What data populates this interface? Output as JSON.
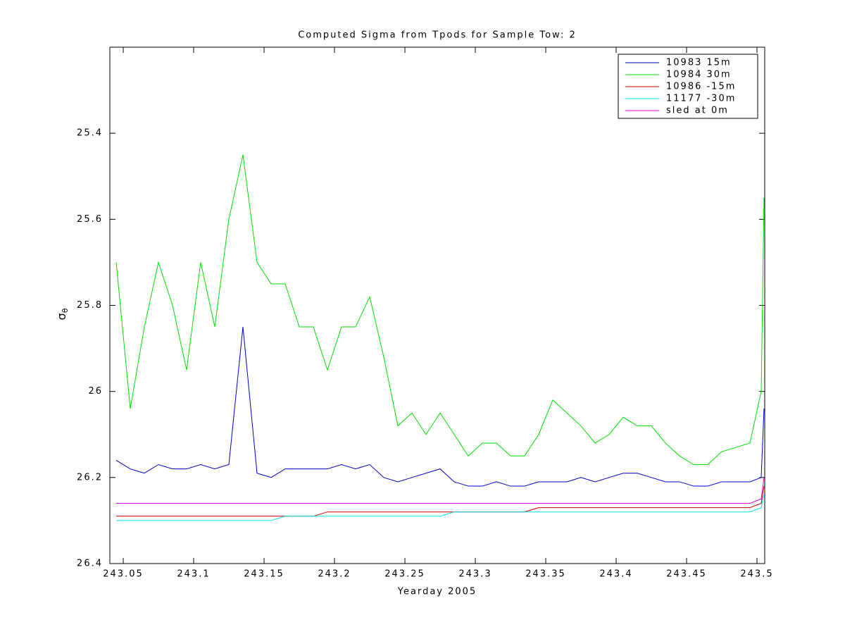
{
  "chart_data": {
    "type": "line",
    "title": "Computed Sigma from Tpods for Sample Tow: 2",
    "xlabel": "Yearday 2005",
    "ylabel": "σθ",
    "xlim": [
      243.0405,
      243.5055
    ],
    "ylim": [
      25.2,
      26.4
    ],
    "y_reversed": true,
    "xticks": [
      243.05,
      243.1,
      243.15,
      243.2,
      243.25,
      243.3,
      243.35,
      243.4,
      243.45,
      243.5
    ],
    "yticks": [
      25.4,
      25.6,
      25.8,
      26,
      26.2,
      26.4
    ],
    "legend": "upper-right",
    "x": [
      243.045,
      243.055,
      243.065,
      243.075,
      243.085,
      243.095,
      243.105,
      243.115,
      243.125,
      243.135,
      243.145,
      243.155,
      243.165,
      243.175,
      243.185,
      243.195,
      243.205,
      243.215,
      243.225,
      243.235,
      243.245,
      243.255,
      243.265,
      243.275,
      243.285,
      243.295,
      243.305,
      243.315,
      243.325,
      243.335,
      243.345,
      243.355,
      243.365,
      243.375,
      243.385,
      243.395,
      243.405,
      243.415,
      243.425,
      243.435,
      243.445,
      243.455,
      243.465,
      243.475,
      243.485,
      243.495,
      243.503,
      243.505
    ],
    "series": [
      {
        "name": "10983 15m",
        "color": "#0000cc",
        "values": [
          26.16,
          26.18,
          26.19,
          26.17,
          26.18,
          26.18,
          26.17,
          26.18,
          26.17,
          25.85,
          26.19,
          26.2,
          26.18,
          26.18,
          26.18,
          26.18,
          26.17,
          26.18,
          26.17,
          26.2,
          26.21,
          26.2,
          26.19,
          26.18,
          26.21,
          26.22,
          26.22,
          26.21,
          26.22,
          26.22,
          26.21,
          26.21,
          26.21,
          26.2,
          26.21,
          26.2,
          26.19,
          26.19,
          26.2,
          26.21,
          26.21,
          26.22,
          26.22,
          26.21,
          26.21,
          26.21,
          26.2,
          26.04
        ]
      },
      {
        "name": "10984 30m",
        "color": "#00e000",
        "values": [
          25.7,
          26.04,
          25.85,
          25.7,
          25.8,
          25.95,
          25.7,
          25.85,
          25.6,
          25.45,
          25.7,
          25.75,
          25.75,
          25.85,
          25.85,
          25.95,
          25.85,
          25.85,
          25.78,
          25.92,
          26.08,
          26.05,
          26.1,
          26.05,
          26.1,
          26.15,
          26.12,
          26.12,
          26.15,
          26.15,
          26.1,
          26.02,
          26.05,
          26.08,
          26.12,
          26.1,
          26.06,
          26.08,
          26.08,
          26.12,
          26.15,
          26.17,
          26.17,
          26.14,
          26.13,
          26.12,
          26.0,
          25.55
        ]
      },
      {
        "name": "10986 -15m",
        "color": "#cc0000",
        "values": [
          26.29,
          26.29,
          26.29,
          26.29,
          26.29,
          26.29,
          26.29,
          26.29,
          26.29,
          26.29,
          26.29,
          26.29,
          26.29,
          26.29,
          26.29,
          26.28,
          26.28,
          26.28,
          26.28,
          26.28,
          26.28,
          26.28,
          26.28,
          26.28,
          26.28,
          26.28,
          26.28,
          26.28,
          26.28,
          26.28,
          26.27,
          26.27,
          26.27,
          26.27,
          26.27,
          26.27,
          26.27,
          26.27,
          26.27,
          26.27,
          26.27,
          26.27,
          26.27,
          26.27,
          26.27,
          26.27,
          26.26,
          26.22
        ]
      },
      {
        "name": "11177 -30m",
        "color": "#00e5e5",
        "values": [
          26.3,
          26.3,
          26.3,
          26.3,
          26.3,
          26.3,
          26.3,
          26.3,
          26.3,
          26.3,
          26.3,
          26.3,
          26.29,
          26.29,
          26.29,
          26.29,
          26.29,
          26.29,
          26.29,
          26.29,
          26.29,
          26.29,
          26.29,
          26.29,
          26.28,
          26.28,
          26.28,
          26.28,
          26.28,
          26.28,
          26.28,
          26.28,
          26.28,
          26.28,
          26.28,
          26.28,
          26.28,
          26.28,
          26.28,
          26.28,
          26.28,
          26.28,
          26.28,
          26.28,
          26.28,
          26.28,
          26.27,
          26.24
        ]
      },
      {
        "name": "sled at 0m",
        "color": "#e000e0",
        "values": [
          26.26,
          26.26,
          26.26,
          26.26,
          26.26,
          26.26,
          26.26,
          26.26,
          26.26,
          26.26,
          26.26,
          26.26,
          26.26,
          26.26,
          26.26,
          26.26,
          26.26,
          26.26,
          26.26,
          26.26,
          26.26,
          26.26,
          26.26,
          26.26,
          26.26,
          26.26,
          26.26,
          26.26,
          26.26,
          26.26,
          26.26,
          26.26,
          26.26,
          26.26,
          26.26,
          26.26,
          26.26,
          26.26,
          26.26,
          26.26,
          26.26,
          26.26,
          26.26,
          26.26,
          26.26,
          26.26,
          26.25,
          26.2
        ]
      }
    ]
  }
}
